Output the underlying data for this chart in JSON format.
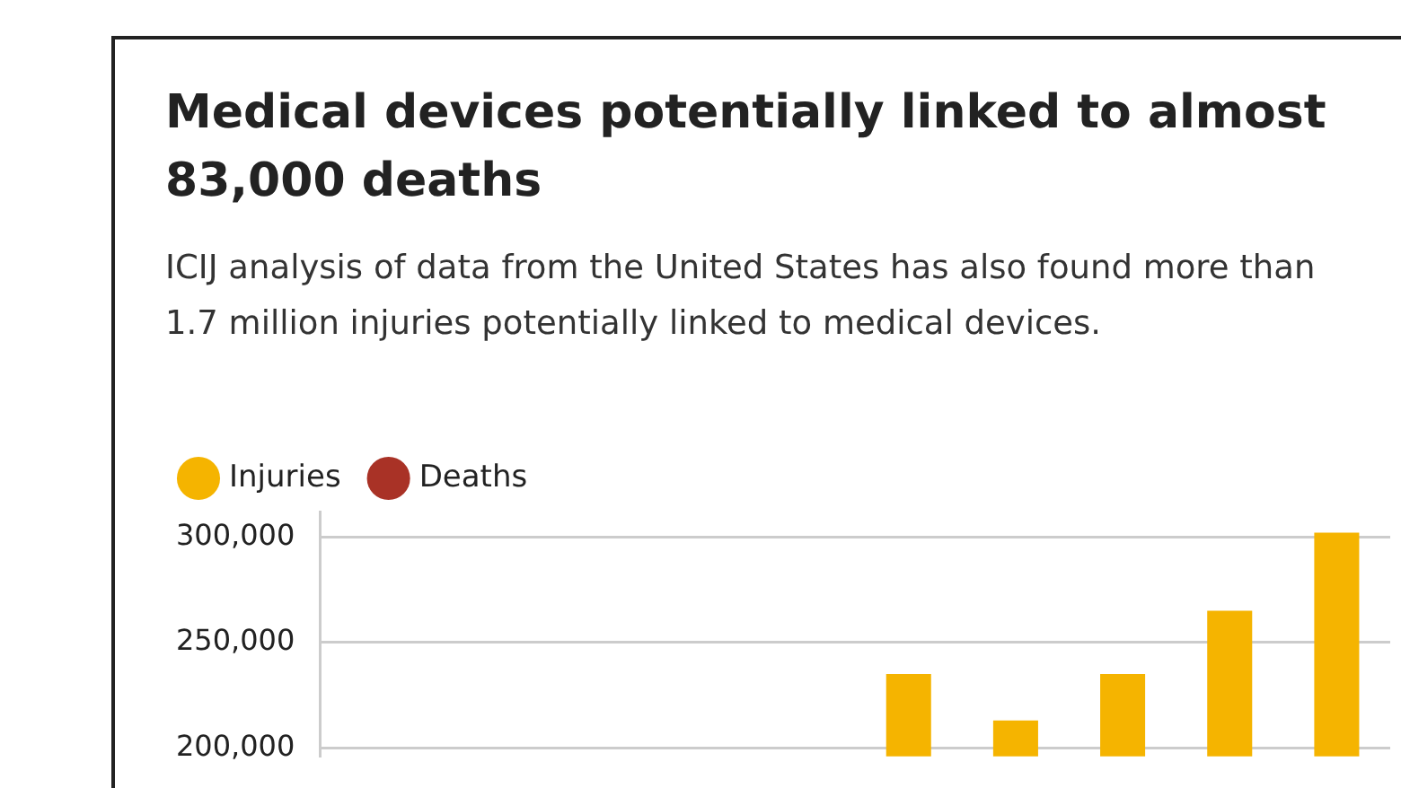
{
  "chart_data": {
    "type": "bar",
    "title": "Medical devices potentially linked to almost 83,000 deaths",
    "subtitle": "ICIJ analysis of data from the United States has also found more than 1.7 million injuries potentially linked to medical devices.",
    "categories": [
      null,
      null,
      null,
      null,
      null,
      null,
      null,
      null,
      null,
      null
    ],
    "series": [
      {
        "name": "Injuries",
        "color": "#f5b400",
        "values": [
          null,
          null,
          null,
          null,
          null,
          235000,
          213000,
          235000,
          265000,
          302000
        ]
      },
      {
        "name": "Deaths",
        "color": "#a93226",
        "values": [
          null,
          null,
          null,
          null,
          null,
          null,
          null,
          null,
          null,
          null
        ]
      }
    ],
    "ylim": [
      196000,
      312000
    ],
    "yticks": [
      {
        "value": 200000,
        "label": "200,000"
      },
      {
        "value": 250000,
        "label": "250,000"
      },
      {
        "value": 300000,
        "label": "300,000"
      }
    ],
    "grid": "y",
    "legend": "top left",
    "tick_labels": "y"
  }
}
